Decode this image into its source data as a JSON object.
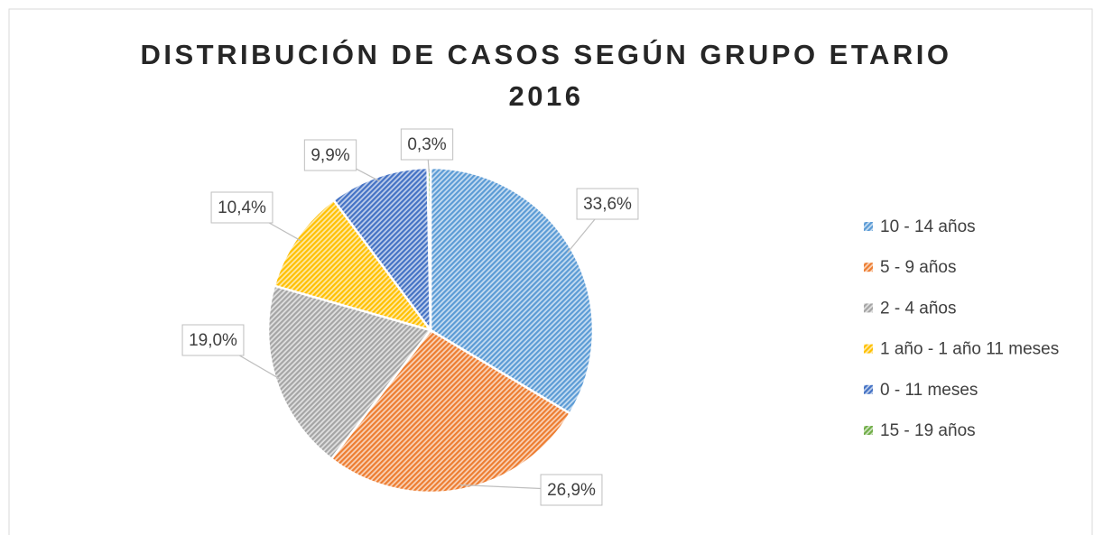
{
  "chart_data": {
    "type": "pie",
    "title": "DISTRIBUCIÓN DE CASOS SEGÚN GRUPO ETARIO 2016",
    "categories": [
      "10 - 14 años",
      "5 - 9 años",
      "2 - 4 años",
      "1 año - 1 año 11 meses",
      "0 - 11 meses",
      "15 - 19 años"
    ],
    "values": [
      33.6,
      26.9,
      19.0,
      10.4,
      9.9,
      0.3
    ],
    "value_labels": [
      "33,6%",
      "26,9%",
      "19,0%",
      "10,4%",
      "9,9%",
      "0,3%"
    ],
    "colors": [
      "#5b9bd5",
      "#ed7d31",
      "#a5a5a5",
      "#ffc000",
      "#4472c4",
      "#70ad47"
    ],
    "legend": "right"
  }
}
